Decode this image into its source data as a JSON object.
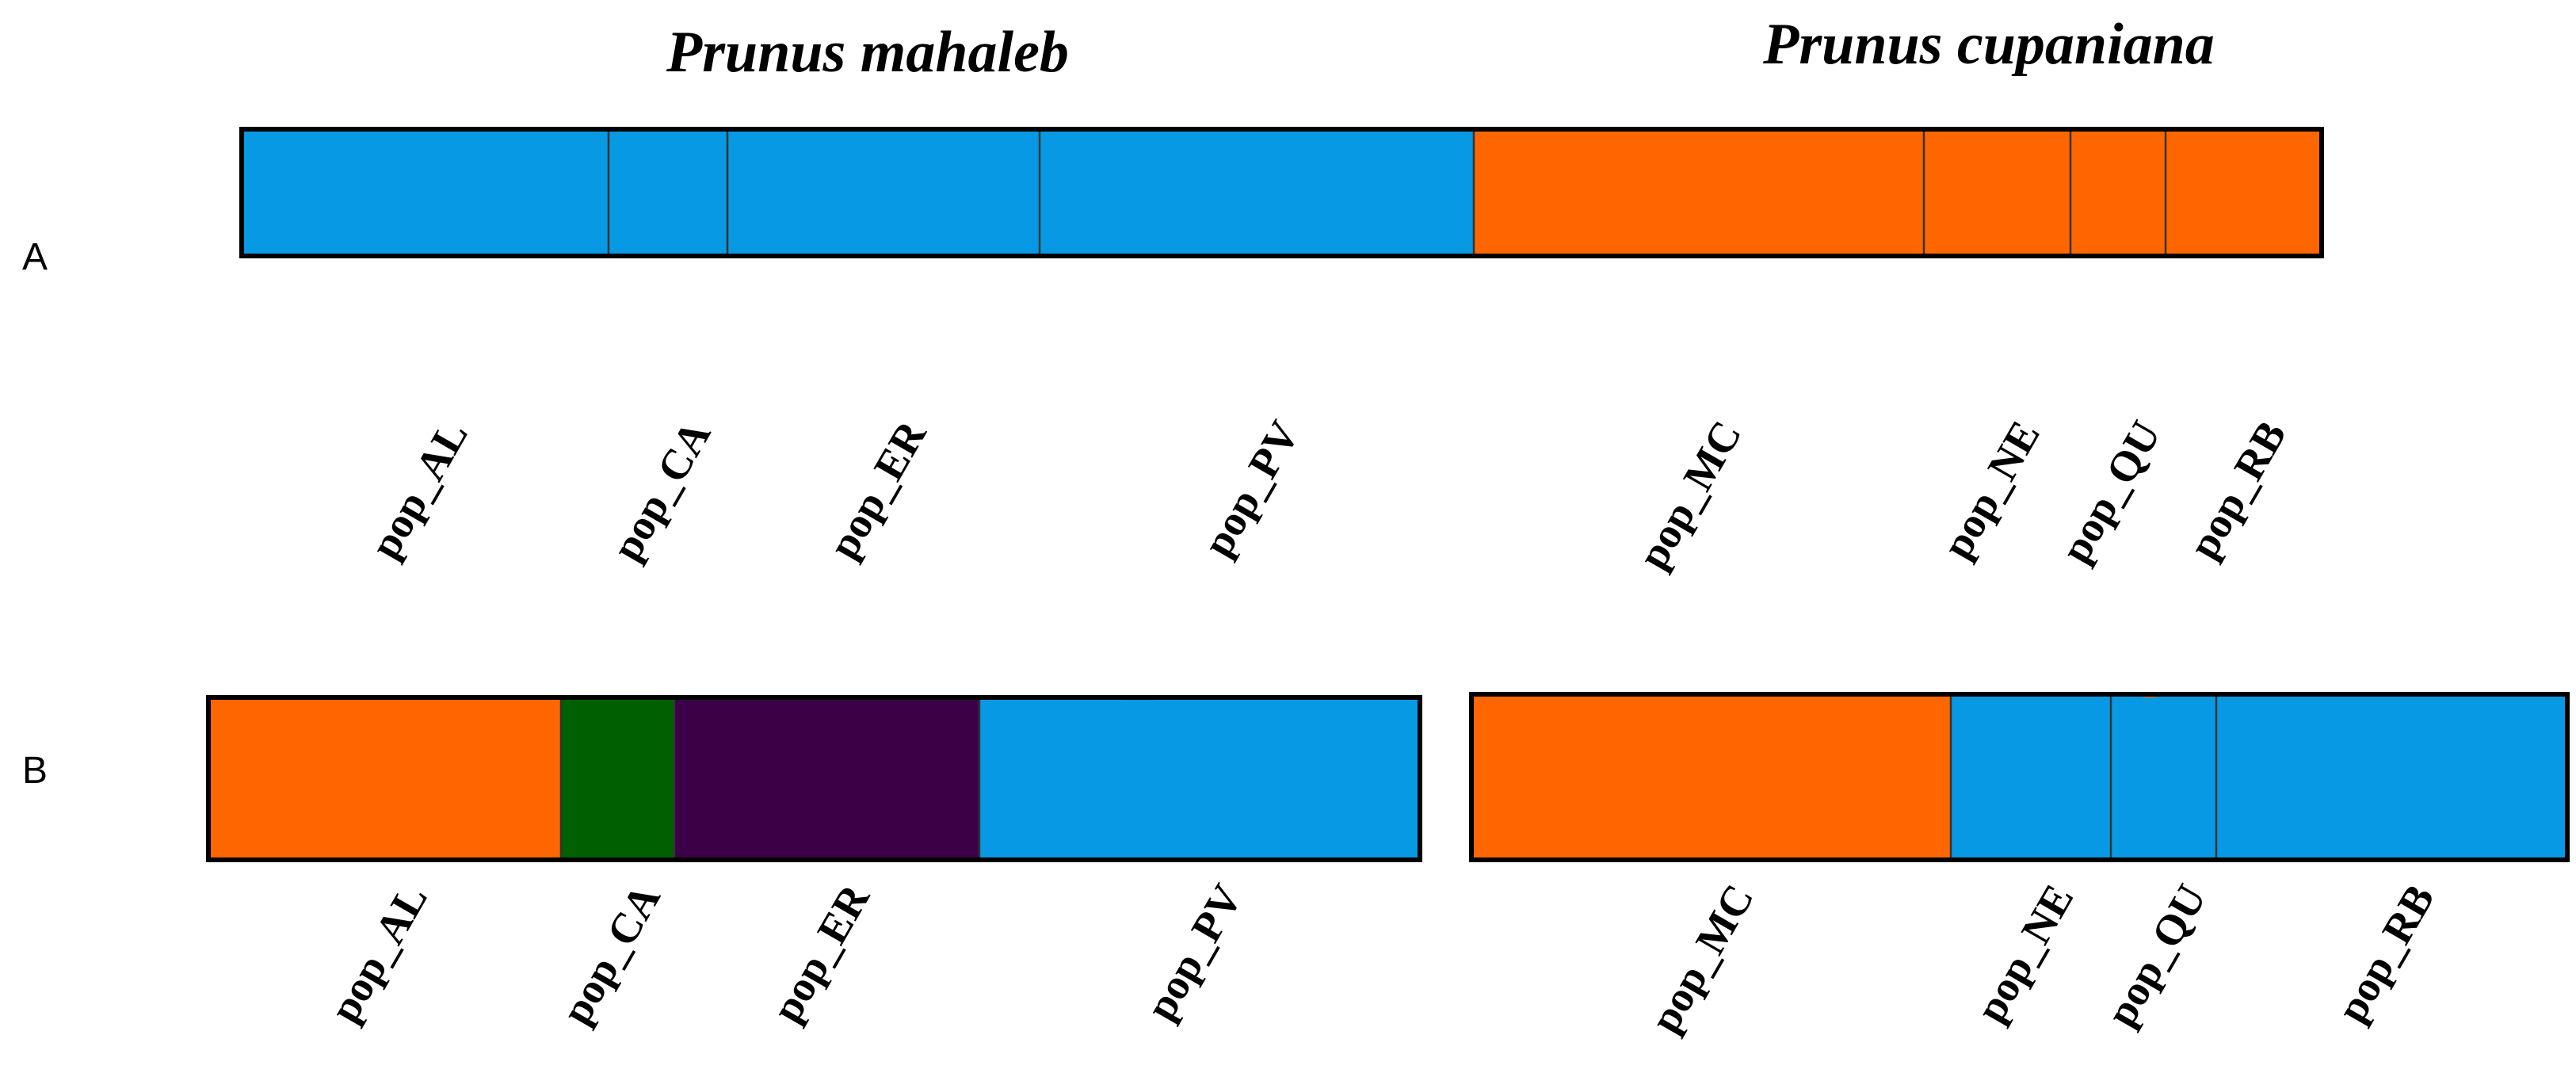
{
  "chart_data": {
    "type": "bar",
    "titles": [
      "Prunus mahaleb",
      "Prunus cupaniana"
    ],
    "colors": {
      "blue": "#0799E3",
      "orange": "#FF6600",
      "green": "#006000",
      "purple": "#3C0046"
    },
    "panels": [
      {
        "label": "A",
        "plots": [
          {
            "populations": [
              {
                "label": "pop_AL",
                "colors": [
                  "blue"
                ],
                "proportions": [
                  1.0
                ]
              },
              {
                "label": "pop_CA",
                "colors": [
                  "blue"
                ],
                "proportions": [
                  1.0
                ]
              },
              {
                "label": "pop_ER",
                "colors": [
                  "blue"
                ],
                "proportions": [
                  1.0
                ]
              },
              {
                "label": "pop_PV",
                "colors": [
                  "blue",
                  "orange"
                ],
                "proportions": [
                  0.99,
                  0.01
                ]
              },
              {
                "label": "pop_MC",
                "colors": [
                  "orange",
                  "blue"
                ],
                "proportions": [
                  0.995,
                  0.005
                ]
              },
              {
                "label": "pop_NE",
                "colors": [
                  "orange"
                ],
                "proportions": [
                  1.0
                ]
              },
              {
                "label": "pop_QU",
                "colors": [
                  "orange"
                ],
                "proportions": [
                  1.0
                ]
              },
              {
                "label": "pop_RB",
                "colors": [
                  "orange"
                ],
                "proportions": [
                  1.0
                ]
              }
            ]
          }
        ]
      },
      {
        "label": "B",
        "plots": [
          {
            "populations": [
              {
                "label": "pop_AL",
                "colors": [
                  "orange",
                  "blue",
                  "green"
                ],
                "proportions": [
                  0.98,
                  0.01,
                  0.01
                ]
              },
              {
                "label": "pop_CA",
                "colors": [
                  "green"
                ],
                "proportions": [
                  1.0
                ]
              },
              {
                "label": "pop_ER",
                "colors": [
                  "purple"
                ],
                "proportions": [
                  1.0
                ]
              },
              {
                "label": "pop_PV",
                "colors": [
                  "blue",
                  "purple"
                ],
                "proportions": [
                  0.985,
                  0.015
                ]
              }
            ]
          },
          {
            "populations": [
              {
                "label": "pop_MC",
                "colors": [
                  "orange",
                  "blue"
                ],
                "proportions": [
                  0.99,
                  0.01
                ]
              },
              {
                "label": "pop_NE",
                "colors": [
                  "blue",
                  "orange"
                ],
                "proportions": [
                  0.99,
                  0.01
                ]
              },
              {
                "label": "pop_QU",
                "colors": [
                  "blue",
                  "orange"
                ],
                "proportions": [
                  0.98,
                  0.02
                ]
              },
              {
                "label": "pop_RB",
                "colors": [
                  "blue",
                  "orange"
                ],
                "proportions": [
                  0.99,
                  0.01
                ]
              }
            ]
          }
        ]
      }
    ]
  }
}
